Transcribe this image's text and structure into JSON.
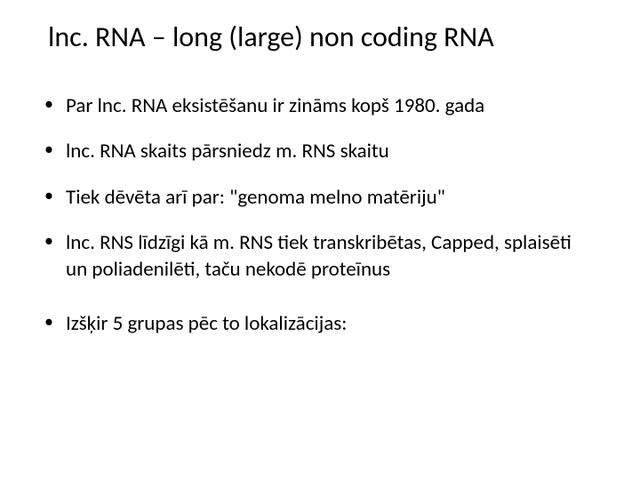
{
  "slide": {
    "title": "lnc. RNA – long (large) non coding RNA",
    "title_fontsize": 32,
    "title_color": "#000000",
    "background_color": "#ffffff",
    "bullet_fontsize": 23,
    "bullet_color": "#000000",
    "bullet_marker": "•",
    "bullets": [
      "Par lnc. RNA eksistēšanu ir zināms kopš 1980. gada",
      "lnc. RNA skaits pārsniedz m. RNS skaitu",
      "Tiek dēvēta arī par: \"genoma melno matēriju\"",
      "lnc. RNS līdzīgi kā m. RNS tiek transkribētas, Capped, splaisēti un poliadenilēti, taču nekodē proteīnus",
      "Izšķir 5 grupas pēc to lokalizācijas:"
    ]
  }
}
